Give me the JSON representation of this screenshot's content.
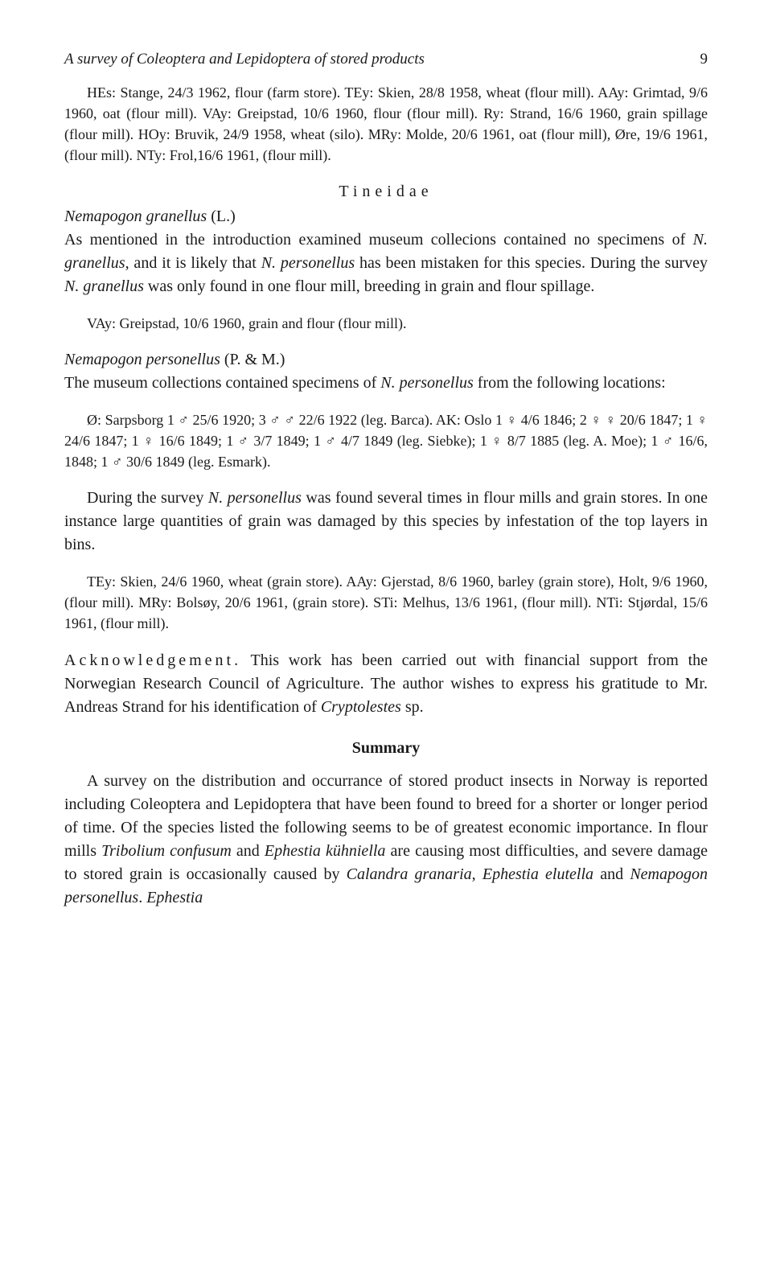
{
  "header": {
    "running_title": "A survey of Coleoptera and Lepidoptera of stored products",
    "page_number": "9"
  },
  "para_hes": "HEs: Stange, 24/3 1962, flour (farm store). TEy: Skien, 28/8 1958, wheat (flour mill). AAy: Grimtad, 9/6 1960, oat (flour mill). VAy: Greipstad, 10/6 1960, flour (flour mill). Ry: Strand, 16/6 1960, grain spillage (flour mill). HOy: Bruvik, 24/9 1958, wheat (silo). MRy: Molde, 20/6 1961, oat (flour mill), Øre, 19/6 1961, (flour mill). NTy: Frol,16/6 1961, (flour mill).",
  "family_heading": "Tineidae",
  "granellus": {
    "name": "Nemapogon granellus",
    "author": " (L.)",
    "body_1": "As mentioned in the introduction examined museum collecions contained no specimens of ",
    "sp1": "N. granellus",
    "body_2": ", and it is likely that ",
    "sp2": "N. personellus",
    "body_3": " has been mistaken for this species. During the survey ",
    "sp3": "N. granellus",
    "body_4": " was only found in one flour mill, breeding in grain and flour spillage.",
    "records": "VAy: Greipstad, 10/6 1960, grain and flour (flour mill)."
  },
  "personellus": {
    "name": "Nemapogon personellus",
    "author": " (P. & M.)",
    "intro_1": "The museum collections contained specimens of ",
    "sp": "N. personellus",
    "intro_2": " from the following locations:",
    "records_detail": "Ø: Sarpsborg 1 ♂ 25/6 1920; 3 ♂ ♂ 22/6 1922 (leg. Barca). AK: Oslo 1 ♀ 4/6 1846; 2 ♀ ♀ 20/6 1847; 1 ♀ 24/6 1847; 1 ♀ 16/6 1849; 1 ♂ 3/7 1849; 1 ♂ 4/7 1849 (leg. Siebke); 1 ♀ 8/7 1885 (leg. A. Moe); 1 ♂ 16/6, 1848; 1 ♂ 30/6 1849 (leg. Esmark).",
    "survey_1": "During the survey ",
    "survey_sp": "N. personellus",
    "survey_2": " was found several times in flour mills and grain stores. In one instance large quantities of grain was damaged by this species by infestation of the top layers in bins.",
    "records2": "TEy: Skien, 24/6 1960, wheat (grain store). AAy: Gjerstad, 8/6 1960, barley (grain store), Holt, 9/6 1960, (flour mill). MRy: Bolsøy, 20/6 1961, (grain store). STi: Melhus, 13/6 1961, (flour mill). NTi: Stjørdal, 15/6 1961, (flour mill)."
  },
  "ack": {
    "heading": "Acknowledgement.",
    "body_1": " This work has been carried out with financial support from the Norwegian Research Council of Agriculture. The author wishes to express his gratitude to Mr. Andreas Strand for his identification of ",
    "sp": "Cryptolestes",
    "body_2": " sp."
  },
  "summary": {
    "heading": "Summary",
    "body_1": "A survey on the distribution and occurrance of stored product insects in Norway is reported including Coleoptera and Lepidoptera that have been found to breed for a shorter or longer period of time. Of the species listed the following seems to be of greatest economic importance. In flour mills ",
    "sp1": "Tribolium confusum",
    "body_2": " and ",
    "sp2": "Ephestia kühniella",
    "body_3": " are causing most difficulties, and severe damage to stored grain is occasionally caused by ",
    "sp3": "Calandra granaria",
    "body_4": ", ",
    "sp4": "Ephestia elutella",
    "body_5": " and ",
    "sp5": "Nemapogon personellus",
    "body_6": ". ",
    "sp6": "Ephestia"
  }
}
